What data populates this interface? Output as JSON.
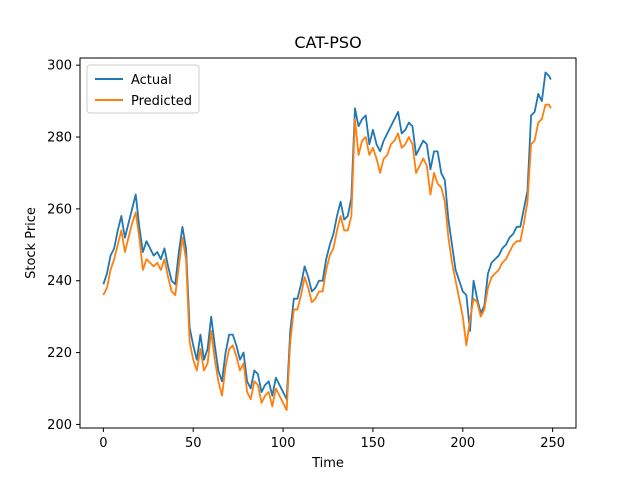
{
  "chart_data": {
    "type": "line",
    "title": "CAT-PSO",
    "xlabel": "Time",
    "ylabel": "Stock Price",
    "xlim": [
      -13,
      263
    ],
    "ylim": [
      199,
      302
    ],
    "xticks": [
      0,
      50,
      100,
      150,
      200,
      250
    ],
    "yticks": [
      200,
      220,
      240,
      260,
      280,
      300
    ],
    "grid": false,
    "legend_position": "top-left",
    "series": [
      {
        "name": "Actual",
        "color": "#1f77b4",
        "x": [
          0,
          2,
          4,
          6,
          8,
          10,
          12,
          14,
          16,
          18,
          20,
          22,
          24,
          26,
          28,
          30,
          32,
          34,
          36,
          38,
          40,
          42,
          44,
          46,
          48,
          50,
          52,
          54,
          56,
          58,
          60,
          62,
          64,
          66,
          68,
          70,
          72,
          74,
          76,
          78,
          80,
          82,
          84,
          86,
          88,
          90,
          92,
          94,
          96,
          98,
          100,
          102,
          104,
          106,
          108,
          110,
          112,
          114,
          116,
          118,
          120,
          122,
          124,
          126,
          128,
          130,
          132,
          134,
          136,
          138,
          140,
          142,
          144,
          146,
          148,
          150,
          152,
          154,
          156,
          158,
          160,
          162,
          164,
          166,
          168,
          170,
          172,
          174,
          176,
          178,
          180,
          182,
          184,
          186,
          188,
          190,
          192,
          194,
          196,
          198,
          200,
          202,
          204,
          206,
          208,
          210,
          212,
          214,
          216,
          218,
          220,
          222,
          224,
          226,
          228,
          230,
          232,
          234,
          236,
          238,
          240,
          242,
          244,
          246,
          248,
          249
        ],
        "values": [
          239,
          242,
          247,
          249,
          254,
          258,
          252,
          256,
          260,
          264,
          255,
          248,
          251,
          249,
          247,
          248,
          246,
          249,
          244,
          240,
          239,
          248,
          255,
          249,
          227,
          222,
          218,
          225,
          218,
          221,
          230,
          222,
          215,
          212,
          220,
          225,
          225,
          222,
          218,
          220,
          212,
          210,
          215,
          214,
          209,
          211,
          212,
          208,
          213,
          211,
          209,
          207,
          226,
          235,
          235,
          239,
          244,
          241,
          237,
          238,
          240,
          240,
          246,
          250,
          253,
          258,
          262,
          257,
          258,
          263,
          288,
          283,
          285,
          286,
          278,
          282,
          278,
          276,
          279,
          281,
          283,
          285,
          287,
          281,
          282,
          284,
          283,
          275,
          277,
          279,
          278,
          271,
          276,
          276,
          270,
          268,
          257,
          250,
          243,
          240,
          237,
          236,
          226,
          240,
          235,
          231,
          233,
          242,
          245,
          246,
          247,
          249,
          250,
          252,
          253,
          255,
          255,
          260,
          265,
          286,
          287,
          292,
          290,
          298,
          297,
          296
        ]
      },
      {
        "name": "Predicted",
        "color": "#ff7f0e",
        "x": [
          0,
          2,
          4,
          6,
          8,
          10,
          12,
          14,
          16,
          18,
          20,
          22,
          24,
          26,
          28,
          30,
          32,
          34,
          36,
          38,
          40,
          42,
          44,
          46,
          48,
          50,
          52,
          54,
          56,
          58,
          60,
          62,
          64,
          66,
          68,
          70,
          72,
          74,
          76,
          78,
          80,
          82,
          84,
          86,
          88,
          90,
          92,
          94,
          96,
          98,
          100,
          102,
          104,
          106,
          108,
          110,
          112,
          114,
          116,
          118,
          120,
          122,
          124,
          126,
          128,
          130,
          132,
          134,
          136,
          138,
          140,
          142,
          144,
          146,
          148,
          150,
          152,
          154,
          156,
          158,
          160,
          162,
          164,
          166,
          168,
          170,
          172,
          174,
          176,
          178,
          180,
          182,
          184,
          186,
          188,
          190,
          192,
          194,
          196,
          198,
          200,
          202,
          204,
          206,
          208,
          210,
          212,
          214,
          216,
          218,
          220,
          222,
          224,
          226,
          228,
          230,
          232,
          234,
          236,
          238,
          240,
          242,
          244,
          246,
          248,
          249
        ],
        "values": [
          236,
          238,
          243,
          246,
          250,
          254,
          248,
          252,
          256,
          259,
          252,
          243,
          246,
          245,
          244,
          245,
          243,
          246,
          241,
          237,
          236,
          244,
          252,
          246,
          223,
          218,
          215,
          221,
          215,
          217,
          226,
          218,
          212,
          208,
          216,
          221,
          222,
          219,
          215,
          217,
          209,
          207,
          212,
          211,
          206,
          208,
          209,
          205,
          210,
          208,
          206,
          204,
          223,
          232,
          232,
          236,
          241,
          238,
          234,
          235,
          237,
          237,
          243,
          247,
          249,
          254,
          258,
          254,
          254,
          258,
          285,
          275,
          279,
          280,
          275,
          277,
          274,
          270,
          274,
          275,
          278,
          279,
          281,
          277,
          278,
          280,
          278,
          270,
          272,
          274,
          272,
          264,
          270,
          267,
          266,
          262,
          252,
          245,
          240,
          235,
          230,
          222,
          229,
          235,
          234,
          230,
          232,
          238,
          241,
          242,
          243,
          245,
          246,
          248,
          250,
          251,
          251,
          256,
          262,
          278,
          279,
          284,
          285,
          289,
          289,
          288
        ]
      }
    ]
  }
}
